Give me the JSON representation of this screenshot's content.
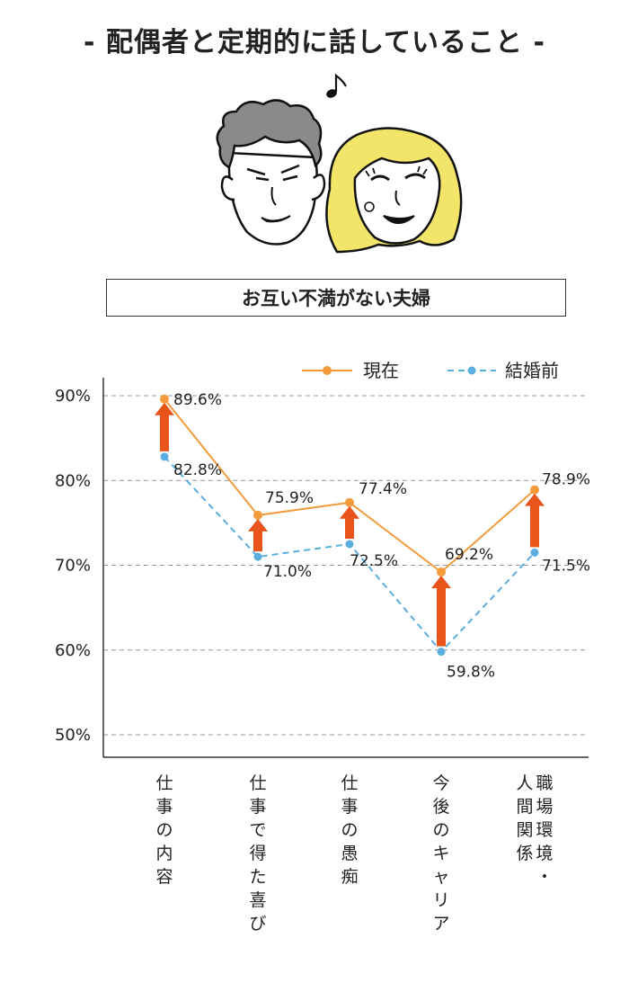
{
  "page": {
    "title": "- 配偶者と定期的に話していること -",
    "subtitle": "お互い不満がない夫婦"
  },
  "colors": {
    "current": "#f39a3b",
    "before": "#5aaee0",
    "arrow": "#e8541a",
    "grid": "#999999",
    "axis": "#333333",
    "hair_woman": "#f3e56a",
    "hair_man": "#8a8a8a"
  },
  "icons": [
    "music-note-icon",
    "man-face-icon",
    "woman-face-icon",
    "increase-arrow-icon"
  ],
  "chart_data": {
    "type": "line",
    "categories": [
      "仕事の内容",
      "仕事で得た喜び",
      "仕事の愚痴",
      "今後のキャリア",
      "職場環境・人間関係"
    ],
    "category_lines": [
      [
        "仕事の内容"
      ],
      [
        "仕事で得た喜び"
      ],
      [
        "仕事の愚痴"
      ],
      [
        "今後のキャリア"
      ],
      [
        "人間関係",
        "職場環境・"
      ]
    ],
    "series": [
      {
        "name": "現在",
        "values": [
          89.6,
          75.9,
          77.4,
          69.2,
          78.9
        ],
        "labels": [
          "89.6%",
          "75.9%",
          "77.4%",
          "69.2%",
          "78.9%"
        ],
        "style": "solid"
      },
      {
        "name": "結婚前",
        "values": [
          82.8,
          71.0,
          72.5,
          59.8,
          71.5
        ],
        "labels": [
          "82.8%",
          "71.0%",
          "72.5%",
          "59.8%",
          "71.5%"
        ],
        "style": "dashed"
      }
    ],
    "y_ticks": [
      50,
      60,
      70,
      80,
      90
    ],
    "y_tick_labels": [
      "50%",
      "60%",
      "70%",
      "80%",
      "90%"
    ],
    "ylim": [
      50,
      90
    ],
    "grid": true,
    "legend": "top-right",
    "annotations": "upward arrows from 結婚前 to 現在 for each category"
  }
}
